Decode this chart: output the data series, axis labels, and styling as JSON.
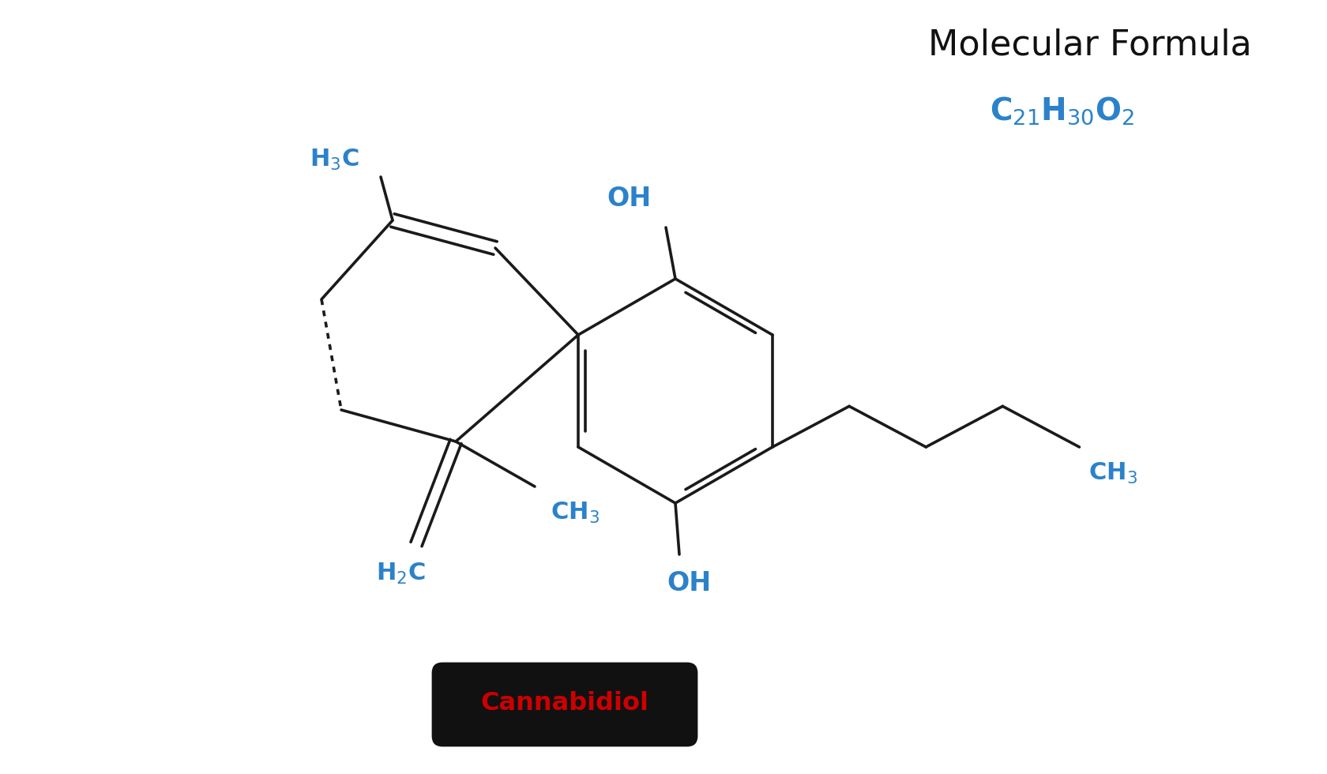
{
  "bg_color": "#ffffff",
  "bond_color": "#1a1a1a",
  "label_color": "#2b82c9",
  "title_color": "#111111",
  "title": "Molecular Formula",
  "name": "Cannabidiol",
  "name_color": "#cc0000",
  "name_bg": "#111111",
  "lw": 2.6,
  "bx": 8.55,
  "by": 4.85,
  "br": 1.42
}
